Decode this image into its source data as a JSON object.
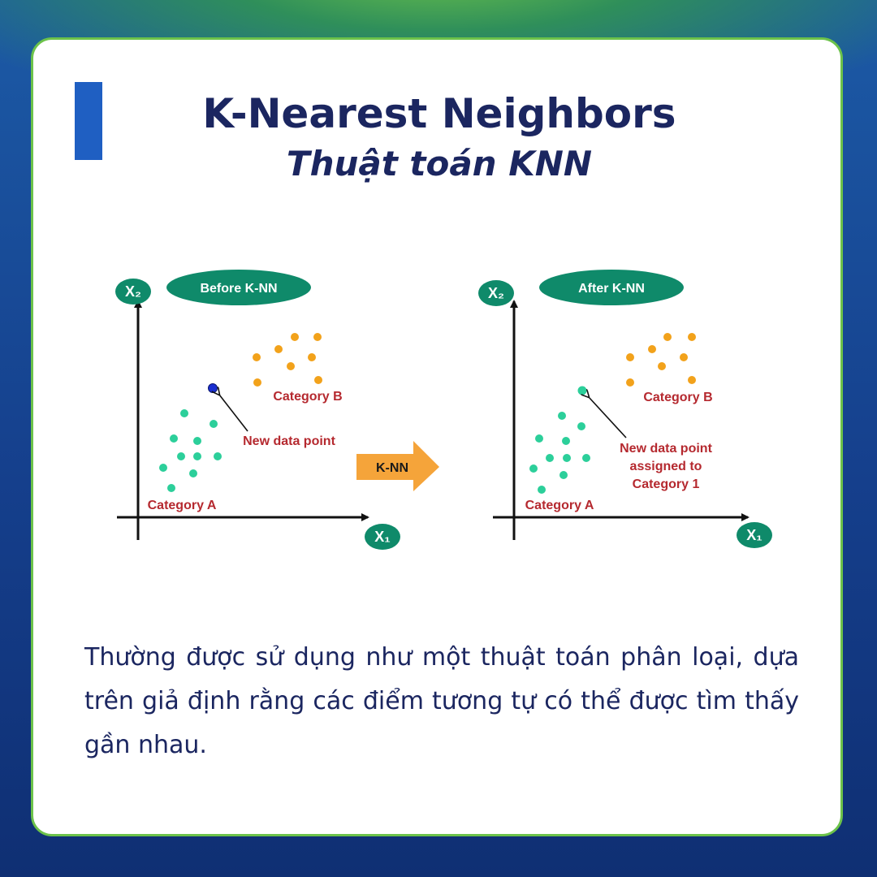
{
  "header": {
    "title": "K-Nearest Neighbors",
    "subtitle": "Thuật toán KNN"
  },
  "diagram": {
    "before_label": "Before K-NN",
    "after_label": "After K-NN",
    "arrow_label": "K-NN",
    "x_axis_label": "X₁",
    "y_axis_label": "X₂",
    "category_a": "Category A",
    "category_b": "Category B",
    "new_point_label": "New data point",
    "assigned_line1": "New data point",
    "assigned_line2": "assigned to",
    "assigned_line3": "Category 1",
    "colors": {
      "category_a": "#2ccf9a",
      "category_b": "#f2a21b",
      "new_point": "#1a2fd1",
      "badge": "#0f8a6a",
      "arrow": "#f5a43a",
      "label_red": "#b5292f"
    }
  },
  "body": {
    "text": "Thường được sử dụng như một thuật toán phân loại, dựa trên giả định rằng các điểm tương tự có thể được tìm thấy gần nhau."
  }
}
